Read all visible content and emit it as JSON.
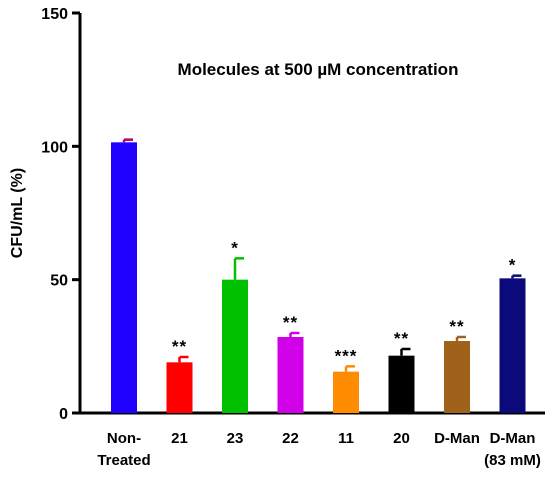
{
  "chart_data": {
    "type": "bar",
    "title": "Molecules at 500 µM concentration",
    "xlabel": "",
    "ylabel": "CFU/mL (%)",
    "ylim": [
      0,
      150
    ],
    "yticks": [
      0,
      50,
      100,
      150
    ],
    "grid": false,
    "categories": [
      [
        "Non-",
        "Treated"
      ],
      [
        "21"
      ],
      [
        "23"
      ],
      [
        "22"
      ],
      [
        "11"
      ],
      [
        "20"
      ],
      [
        "D-Man"
      ],
      [
        "D-Man",
        "(83 mM)"
      ]
    ],
    "values": [
      101.5,
      19,
      50,
      28.5,
      15.5,
      21.5,
      27,
      50.5
    ],
    "errors": [
      1,
      2,
      8,
      1.5,
      2,
      2.5,
      1.5,
      1
    ],
    "significance": [
      "",
      "**",
      "*",
      "**",
      "***",
      "**",
      "**",
      "*"
    ],
    "colors": [
      "#1f00ff",
      "#ff0000",
      "#00c000",
      "#d000e8",
      "#ff8c00",
      "#000000",
      "#a0621a",
      "#0c0a7a"
    ],
    "error_bar_colors": [
      "#b0006a",
      "#ff0000",
      "#00c000",
      "#d000e8",
      "#ff8c00",
      "#000000",
      "#a0621a",
      "#0c0a7a"
    ]
  }
}
